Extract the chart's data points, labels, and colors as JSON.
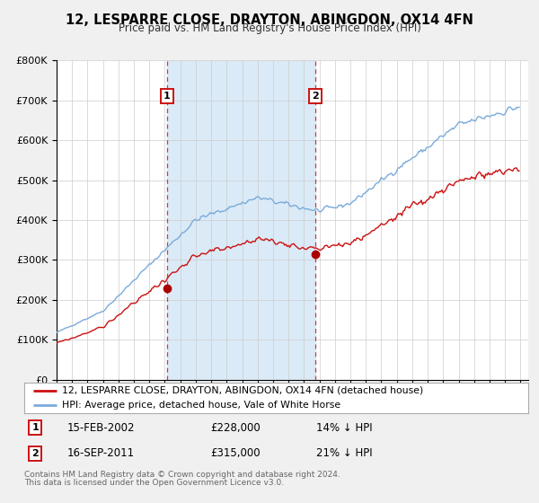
{
  "title": "12, LESPARRE CLOSE, DRAYTON, ABINGDON, OX14 4FN",
  "subtitle": "Price paid vs. HM Land Registry's House Price Index (HPI)",
  "bg_color": "#f0f0f0",
  "plot_bg_color": "#ffffff",
  "grid_color": "#cccccc",
  "hpi_color": "#7aabda",
  "price_color": "#cc1111",
  "marker_color": "#aa0000",
  "shade_color": "#daeaf7",
  "ylim": [
    0,
    800000
  ],
  "xlim_start": 1995.0,
  "xlim_end": 2025.5,
  "yticks": [
    0,
    100000,
    200000,
    300000,
    400000,
    500000,
    600000,
    700000,
    800000
  ],
  "ytick_labels": [
    "£0",
    "£100K",
    "£200K",
    "£300K",
    "£400K",
    "£500K",
    "£600K",
    "£700K",
    "£800K"
  ],
  "sale1_x": 2002.12,
  "sale1_y": 228000,
  "sale1_label": "1",
  "sale1_date": "15-FEB-2002",
  "sale1_price": "£228,000",
  "sale1_hpi": "14% ↓ HPI",
  "sale2_x": 2011.71,
  "sale2_y": 315000,
  "sale2_label": "2",
  "sale2_date": "16-SEP-2011",
  "sale2_price": "£315,000",
  "sale2_hpi": "21% ↓ HPI",
  "legend_line1": "12, LESPARRE CLOSE, DRAYTON, ABINGDON, OX14 4FN (detached house)",
  "legend_line2": "HPI: Average price, detached house, Vale of White Horse",
  "footer1": "Contains HM Land Registry data © Crown copyright and database right 2024.",
  "footer2": "This data is licensed under the Open Government Licence v3.0."
}
